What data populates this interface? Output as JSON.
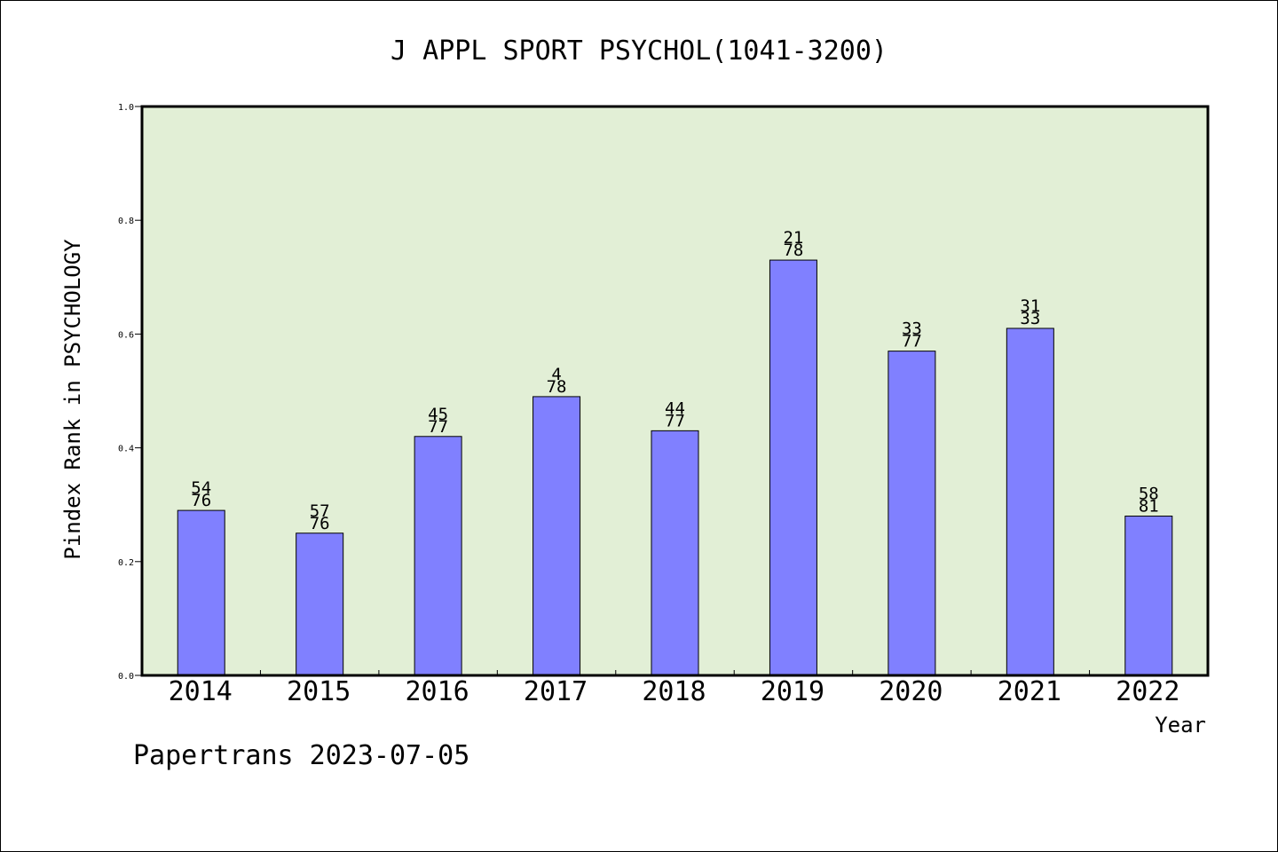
{
  "chart_data": {
    "type": "bar",
    "title": "J APPL SPORT PSYCHOL(1041-3200)",
    "xlabel": "Year",
    "ylabel": "Pindex Rank in PSYCHOLOGY",
    "categories": [
      "2014",
      "2015",
      "2016",
      "2017",
      "2018",
      "2019",
      "2020",
      "2021",
      "2022"
    ],
    "values": [
      0.29,
      0.25,
      0.42,
      0.49,
      0.43,
      0.73,
      0.57,
      0.61,
      0.28
    ],
    "bar_labels": [
      {
        "top": "54",
        "bottom": "76"
      },
      {
        "top": "57",
        "bottom": "76"
      },
      {
        "top": "45",
        "bottom": "77"
      },
      {
        "top": "4",
        "bottom": "78"
      },
      {
        "top": "44",
        "bottom": "77"
      },
      {
        "top": "21",
        "bottom": "78"
      },
      {
        "top": "33",
        "bottom": "77"
      },
      {
        "top": "31",
        "bottom": "33"
      },
      {
        "top": "58",
        "bottom": "81"
      }
    ],
    "ylim": [
      0,
      1.0
    ],
    "yticks": [
      "0.0",
      "0.2",
      "0.4",
      "0.6",
      "0.8",
      "1.0"
    ],
    "grid": false,
    "colors": {
      "bar": "#8080ff",
      "plot_background": "#e2efd6"
    }
  },
  "footer": {
    "text": "Papertrans 2023-07-05"
  }
}
